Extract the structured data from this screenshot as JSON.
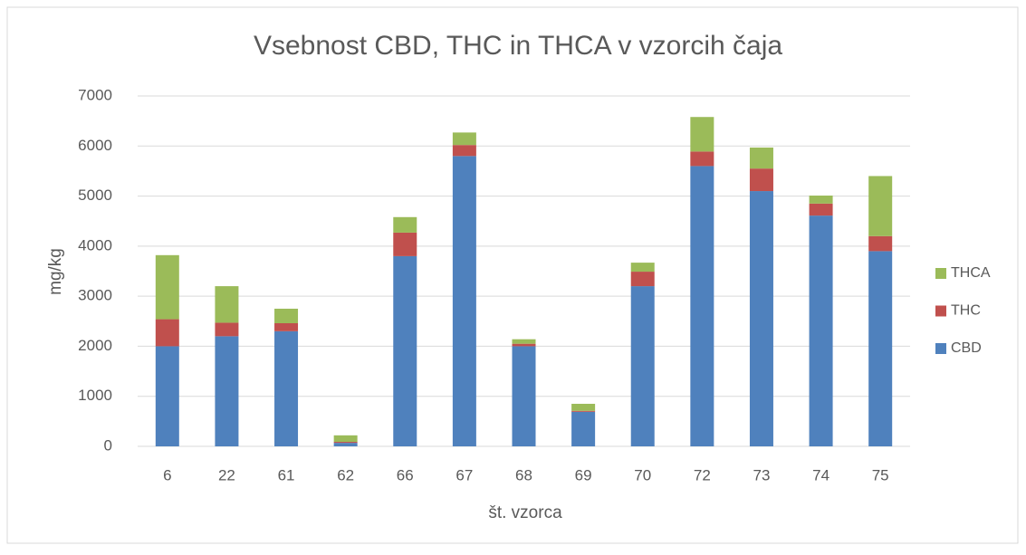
{
  "chart_data": {
    "type": "stacked_bar",
    "title": "Vsebnost CBD, THC in THCA v vzorcih čaja",
    "x_label": "št. vzorca",
    "y_label": "mg/kg",
    "categories": [
      "6",
      "22",
      "61",
      "62",
      "66",
      "67",
      "68",
      "69",
      "70",
      "72",
      "73",
      "74",
      "75"
    ],
    "series": [
      {
        "name": "CBD",
        "color": "#4f81bd",
        "values": [
          2000,
          2200,
          2300,
          70,
          3800,
          5800,
          2000,
          690,
          3200,
          5600,
          5100,
          4610,
          3900
        ]
      },
      {
        "name": "THC",
        "color": "#c0504d",
        "values": [
          540,
          270,
          160,
          20,
          470,
          220,
          50,
          20,
          290,
          290,
          450,
          240,
          300
        ]
      },
      {
        "name": "THCA",
        "color": "#9bbb59",
        "values": [
          1280,
          730,
          290,
          130,
          310,
          250,
          90,
          140,
          180,
          690,
          420,
          160,
          1200
        ]
      }
    ],
    "ylim": [
      0,
      7000
    ],
    "yticks": [
      0,
      1000,
      2000,
      3000,
      4000,
      5000,
      6000,
      7000
    ],
    "grid": true,
    "legend": "right"
  }
}
